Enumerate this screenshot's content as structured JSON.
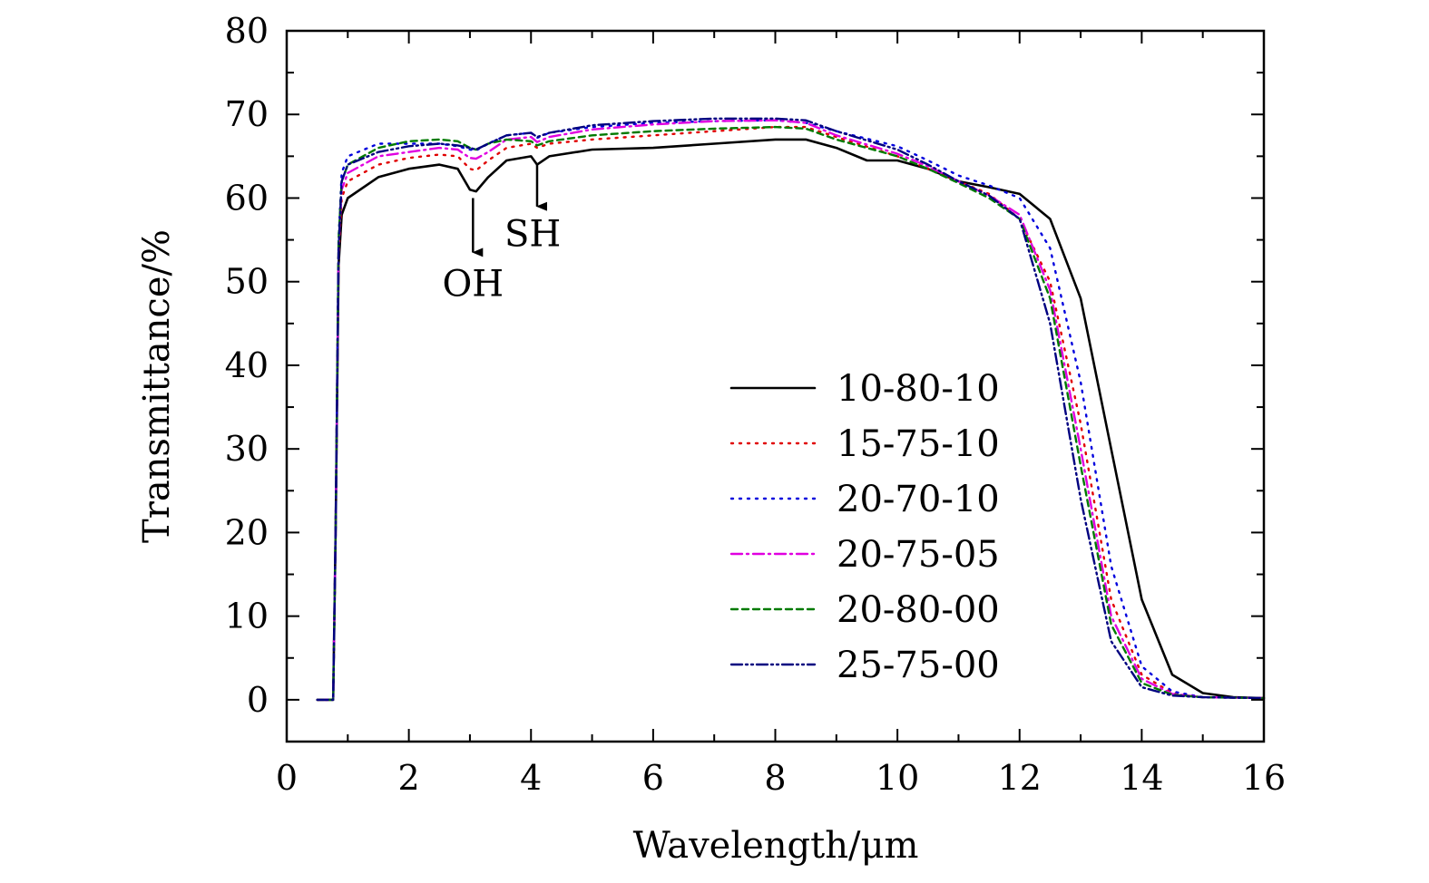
{
  "chart_data": {
    "type": "line",
    "title": "",
    "xlabel": "Wavelength/μm",
    "ylabel": "Transmittance/%",
    "xlim": [
      0,
      16
    ],
    "ylim": [
      -5,
      80
    ],
    "xticks": [
      0,
      2,
      4,
      6,
      8,
      10,
      12,
      14,
      16
    ],
    "yticks": [
      0,
      10,
      20,
      30,
      40,
      50,
      60,
      70,
      80
    ],
    "x_tick_labels": [
      "0",
      "2",
      "4",
      "6",
      "8",
      "10",
      "12",
      "14",
      "16"
    ],
    "y_tick_labels": [
      "0",
      "10",
      "20",
      "30",
      "40",
      "50",
      "60",
      "70",
      "80"
    ],
    "grid": false,
    "legend_position": "right-middle",
    "series": [
      {
        "name": "10-80-10",
        "color": "#000000",
        "style": "solid",
        "points": [
          [
            0.5,
            0
          ],
          [
            0.7,
            0
          ],
          [
            0.76,
            0
          ],
          [
            0.8,
            20
          ],
          [
            0.85,
            52
          ],
          [
            0.9,
            58
          ],
          [
            1.0,
            60
          ],
          [
            1.5,
            62.5
          ],
          [
            2.0,
            63.5
          ],
          [
            2.5,
            64
          ],
          [
            2.8,
            63.5
          ],
          [
            3.0,
            61
          ],
          [
            3.1,
            60.8
          ],
          [
            3.3,
            62.5
          ],
          [
            3.6,
            64.5
          ],
          [
            4.0,
            65
          ],
          [
            4.1,
            64
          ],
          [
            4.3,
            65
          ],
          [
            5,
            65.8
          ],
          [
            6,
            66
          ],
          [
            7,
            66.5
          ],
          [
            8,
            67
          ],
          [
            8.5,
            67
          ],
          [
            9,
            66
          ],
          [
            9.5,
            64.5
          ],
          [
            10,
            64.5
          ],
          [
            10.5,
            63.5
          ],
          [
            11,
            62
          ],
          [
            11.5,
            61.3
          ],
          [
            12,
            60.5
          ],
          [
            12.5,
            57.5
          ],
          [
            13,
            48
          ],
          [
            13.5,
            30
          ],
          [
            14,
            12
          ],
          [
            14.5,
            3
          ],
          [
            15,
            0.8
          ],
          [
            15.5,
            0.3
          ],
          [
            16,
            0.2
          ]
        ]
      },
      {
        "name": "15-75-10",
        "color": "#e00000",
        "style": "dotted",
        "points": [
          [
            0.5,
            0
          ],
          [
            0.7,
            0
          ],
          [
            0.76,
            0
          ],
          [
            0.8,
            20
          ],
          [
            0.85,
            53
          ],
          [
            0.9,
            60
          ],
          [
            1.0,
            62
          ],
          [
            1.5,
            64
          ],
          [
            2.0,
            64.8
          ],
          [
            2.5,
            65.2
          ],
          [
            2.8,
            65
          ],
          [
            3.0,
            63.5
          ],
          [
            3.1,
            63.3
          ],
          [
            3.3,
            64.5
          ],
          [
            3.6,
            66
          ],
          [
            4.0,
            66.5
          ],
          [
            4.1,
            66
          ],
          [
            4.3,
            66.5
          ],
          [
            5,
            67
          ],
          [
            6,
            67.5
          ],
          [
            7,
            68
          ],
          [
            8,
            68.5
          ],
          [
            8.5,
            68.5
          ],
          [
            9,
            67.3
          ],
          [
            10,
            65
          ],
          [
            10.5,
            63.5
          ],
          [
            11,
            62
          ],
          [
            11.5,
            60.5
          ],
          [
            12,
            57.5
          ],
          [
            12.5,
            50
          ],
          [
            13,
            33
          ],
          [
            13.5,
            12
          ],
          [
            14,
            3
          ],
          [
            14.5,
            0.8
          ],
          [
            15,
            0.3
          ],
          [
            16,
            0.2
          ]
        ]
      },
      {
        "name": "20-70-10",
        "color": "#0000dd",
        "style": "dotted",
        "points": [
          [
            0.5,
            0
          ],
          [
            0.7,
            0
          ],
          [
            0.76,
            0
          ],
          [
            0.8,
            20
          ],
          [
            0.85,
            55
          ],
          [
            0.9,
            63
          ],
          [
            1.0,
            65
          ],
          [
            1.5,
            66.5
          ],
          [
            2.0,
            66.5
          ],
          [
            2.5,
            66.5
          ],
          [
            2.8,
            66.2
          ],
          [
            3.0,
            65.8
          ],
          [
            3.1,
            65.7
          ],
          [
            3.3,
            66.5
          ],
          [
            3.6,
            67.5
          ],
          [
            4.0,
            67.8
          ],
          [
            4.1,
            67.2
          ],
          [
            4.3,
            67.8
          ],
          [
            5,
            68.5
          ],
          [
            6,
            69
          ],
          [
            7,
            69.2
          ],
          [
            8,
            69.3
          ],
          [
            8.5,
            69
          ],
          [
            9,
            68
          ],
          [
            10,
            66.2
          ],
          [
            10.5,
            64.5
          ],
          [
            11,
            62.7
          ],
          [
            11.5,
            61.5
          ],
          [
            12,
            60
          ],
          [
            12.5,
            54
          ],
          [
            13,
            38
          ],
          [
            13.5,
            16
          ],
          [
            14,
            4
          ],
          [
            14.5,
            1
          ],
          [
            15,
            0.3
          ],
          [
            16,
            0.2
          ]
        ]
      },
      {
        "name": "20-75-05",
        "color": "#e000e0",
        "style": "dashdot",
        "points": [
          [
            0.5,
            0
          ],
          [
            0.7,
            0
          ],
          [
            0.76,
            0
          ],
          [
            0.8,
            20
          ],
          [
            0.85,
            54
          ],
          [
            0.9,
            61
          ],
          [
            1.0,
            63
          ],
          [
            1.5,
            65
          ],
          [
            2.0,
            65.5
          ],
          [
            2.5,
            66
          ],
          [
            2.8,
            65.8
          ],
          [
            3.0,
            64.8
          ],
          [
            3.1,
            64.7
          ],
          [
            3.3,
            65.5
          ],
          [
            3.6,
            67
          ],
          [
            4.0,
            67.3
          ],
          [
            4.1,
            66.7
          ],
          [
            4.3,
            67.3
          ],
          [
            5,
            68.2
          ],
          [
            6,
            68.8
          ],
          [
            7,
            69.2
          ],
          [
            8,
            69.3
          ],
          [
            8.5,
            69
          ],
          [
            9,
            67.5
          ],
          [
            10,
            65.3
          ],
          [
            10.5,
            63.8
          ],
          [
            11,
            62
          ],
          [
            11.5,
            60.3
          ],
          [
            12,
            58
          ],
          [
            12.5,
            49
          ],
          [
            13,
            30
          ],
          [
            13.5,
            10
          ],
          [
            14,
            2.5
          ],
          [
            14.5,
            0.7
          ],
          [
            15,
            0.3
          ],
          [
            16,
            0.2
          ]
        ]
      },
      {
        "name": "20-80-00",
        "color": "#007a00",
        "style": "dashed",
        "points": [
          [
            0.5,
            0
          ],
          [
            0.7,
            0
          ],
          [
            0.76,
            0
          ],
          [
            0.8,
            20
          ],
          [
            0.85,
            55
          ],
          [
            0.9,
            62
          ],
          [
            1.0,
            64
          ],
          [
            1.5,
            66
          ],
          [
            2.0,
            66.8
          ],
          [
            2.5,
            67
          ],
          [
            2.8,
            66.8
          ],
          [
            3.0,
            66
          ],
          [
            3.1,
            65.8
          ],
          [
            3.3,
            66.5
          ],
          [
            3.6,
            67
          ],
          [
            4.0,
            66.8
          ],
          [
            4.1,
            66.3
          ],
          [
            4.3,
            66.8
          ],
          [
            5,
            67.5
          ],
          [
            6,
            68
          ],
          [
            7,
            68.3
          ],
          [
            8,
            68.5
          ],
          [
            8.5,
            68.3
          ],
          [
            9,
            67
          ],
          [
            10,
            65
          ],
          [
            10.5,
            63.5
          ],
          [
            11,
            61.8
          ],
          [
            11.5,
            60
          ],
          [
            12,
            57.5
          ],
          [
            12.5,
            48
          ],
          [
            13,
            28
          ],
          [
            13.5,
            9
          ],
          [
            14,
            2
          ],
          [
            14.5,
            0.6
          ],
          [
            15,
            0.3
          ],
          [
            16,
            0.2
          ]
        ]
      },
      {
        "name": "25-75-00",
        "color": "#000080",
        "style": "dashdotdot",
        "points": [
          [
            0.5,
            0
          ],
          [
            0.7,
            0
          ],
          [
            0.76,
            0
          ],
          [
            0.8,
            20
          ],
          [
            0.85,
            54
          ],
          [
            0.9,
            62
          ],
          [
            1.0,
            64
          ],
          [
            1.5,
            65.5
          ],
          [
            2.0,
            66.2
          ],
          [
            2.5,
            66.5
          ],
          [
            2.8,
            66.3
          ],
          [
            3.0,
            66
          ],
          [
            3.1,
            65.8
          ],
          [
            3.3,
            66.5
          ],
          [
            3.6,
            67.5
          ],
          [
            4.0,
            67.8
          ],
          [
            4.1,
            67.3
          ],
          [
            4.3,
            67.8
          ],
          [
            5,
            68.7
          ],
          [
            6,
            69.2
          ],
          [
            7,
            69.5
          ],
          [
            8,
            69.5
          ],
          [
            8.5,
            69.3
          ],
          [
            9,
            68
          ],
          [
            10,
            65.8
          ],
          [
            10.5,
            64
          ],
          [
            11,
            62
          ],
          [
            11.5,
            60.3
          ],
          [
            12,
            57.5
          ],
          [
            12.5,
            45
          ],
          [
            13,
            24
          ],
          [
            13.5,
            7
          ],
          [
            14,
            1.5
          ],
          [
            14.5,
            0.5
          ],
          [
            15,
            0.3
          ],
          [
            16,
            0.2
          ]
        ]
      }
    ],
    "annotations": [
      {
        "text": "OH",
        "arrow_x": 3.05,
        "arrow_from": 60,
        "arrow_to": 53.5
      },
      {
        "text": "SH",
        "arrow_x": 4.1,
        "arrow_from": 64,
        "arrow_to": 59
      }
    ]
  }
}
